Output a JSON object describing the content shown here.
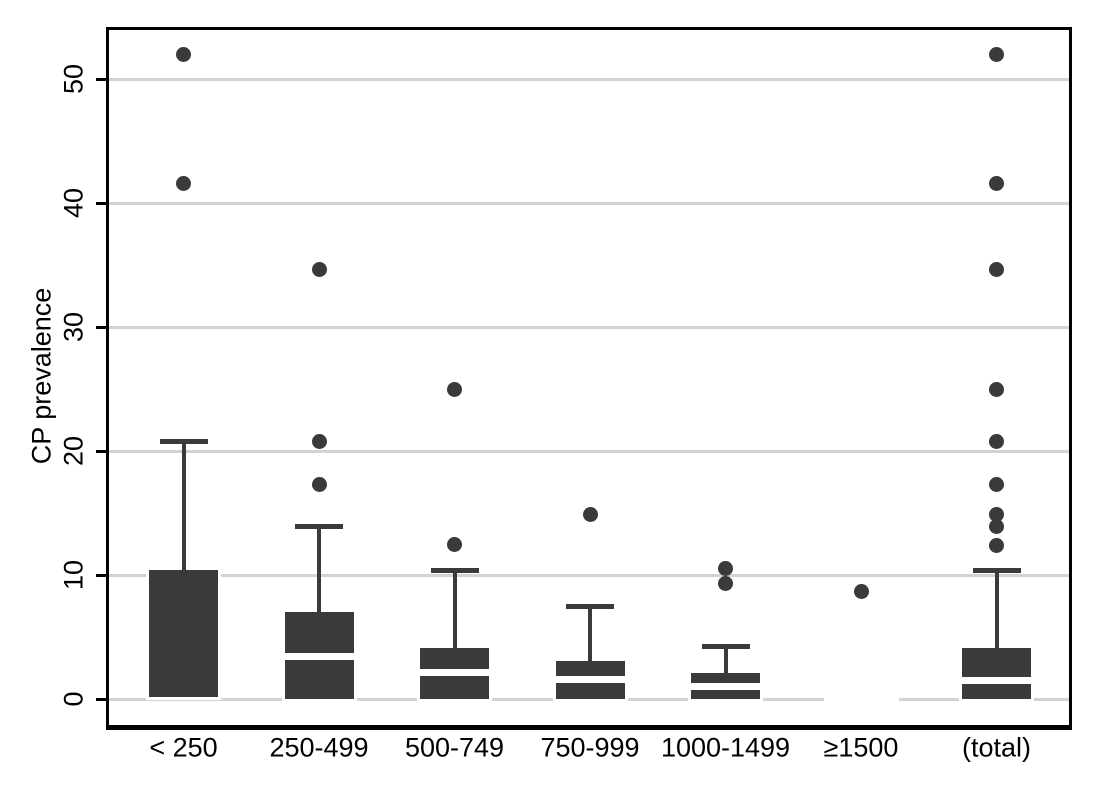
{
  "chart_data": {
    "type": "box",
    "title": "",
    "xlabel": "",
    "ylabel": "CP prevalence",
    "yticks": [
      0,
      10,
      20,
      30,
      40,
      50
    ],
    "ylim_drawn": [
      -2.1,
      54.2
    ],
    "grid": "horizontal",
    "legend": "none",
    "categories": [
      "< 250",
      "250-499",
      "500-749",
      "750-999",
      "1000-1499",
      "≥1500",
      "(total)"
    ],
    "series": [
      {
        "category": "< 250",
        "whisker_low": 0.2,
        "q1": 0.2,
        "median": 0.2,
        "q3": 10.4,
        "whisker_high": 20.8,
        "outliers": [
          41.6,
          52.0
        ]
      },
      {
        "category": "250-499",
        "whisker_low": 0,
        "q1": 0,
        "median": 3.4,
        "q3": 7.0,
        "whisker_high": 13.9,
        "outliers": [
          17.3,
          20.8,
          34.6
        ]
      },
      {
        "category": "500-749",
        "whisker_low": 0,
        "q1": 0,
        "median": 2.1,
        "q3": 4.1,
        "whisker_high": 10.4,
        "outliers": [
          12.5,
          25.0
        ]
      },
      {
        "category": "750-999",
        "whisker_low": 0,
        "q1": 0,
        "median": 1.6,
        "q3": 3.1,
        "whisker_high": 7.5,
        "outliers": [
          14.9
        ]
      },
      {
        "category": "1000-1499",
        "whisker_low": 0,
        "q1": 0,
        "median": 1.0,
        "q3": 2.1,
        "whisker_high": 4.2,
        "outliers": [
          9.3,
          10.5
        ]
      },
      {
        "category": "≥1500",
        "whisker_low": 0,
        "q1": 0,
        "median": 0,
        "q3": 0,
        "whisker_high": 0,
        "outliers": [
          8.7
        ]
      },
      {
        "category": "(total)",
        "whisker_low": 0,
        "q1": 0,
        "median": 1.5,
        "q3": 4.1,
        "whisker_high": 10.4,
        "outliers": [
          12.4,
          13.9,
          14.9,
          17.3,
          20.8,
          25.0,
          34.6,
          41.6,
          52.0
        ]
      }
    ],
    "colors": {
      "box_fill": "#3a3a3a",
      "outlier_dot": "#3a3a3a",
      "gridline": "#d3d3d3",
      "frame": "#000000",
      "median_line": "#ffffff",
      "background": "#ffffff"
    }
  }
}
